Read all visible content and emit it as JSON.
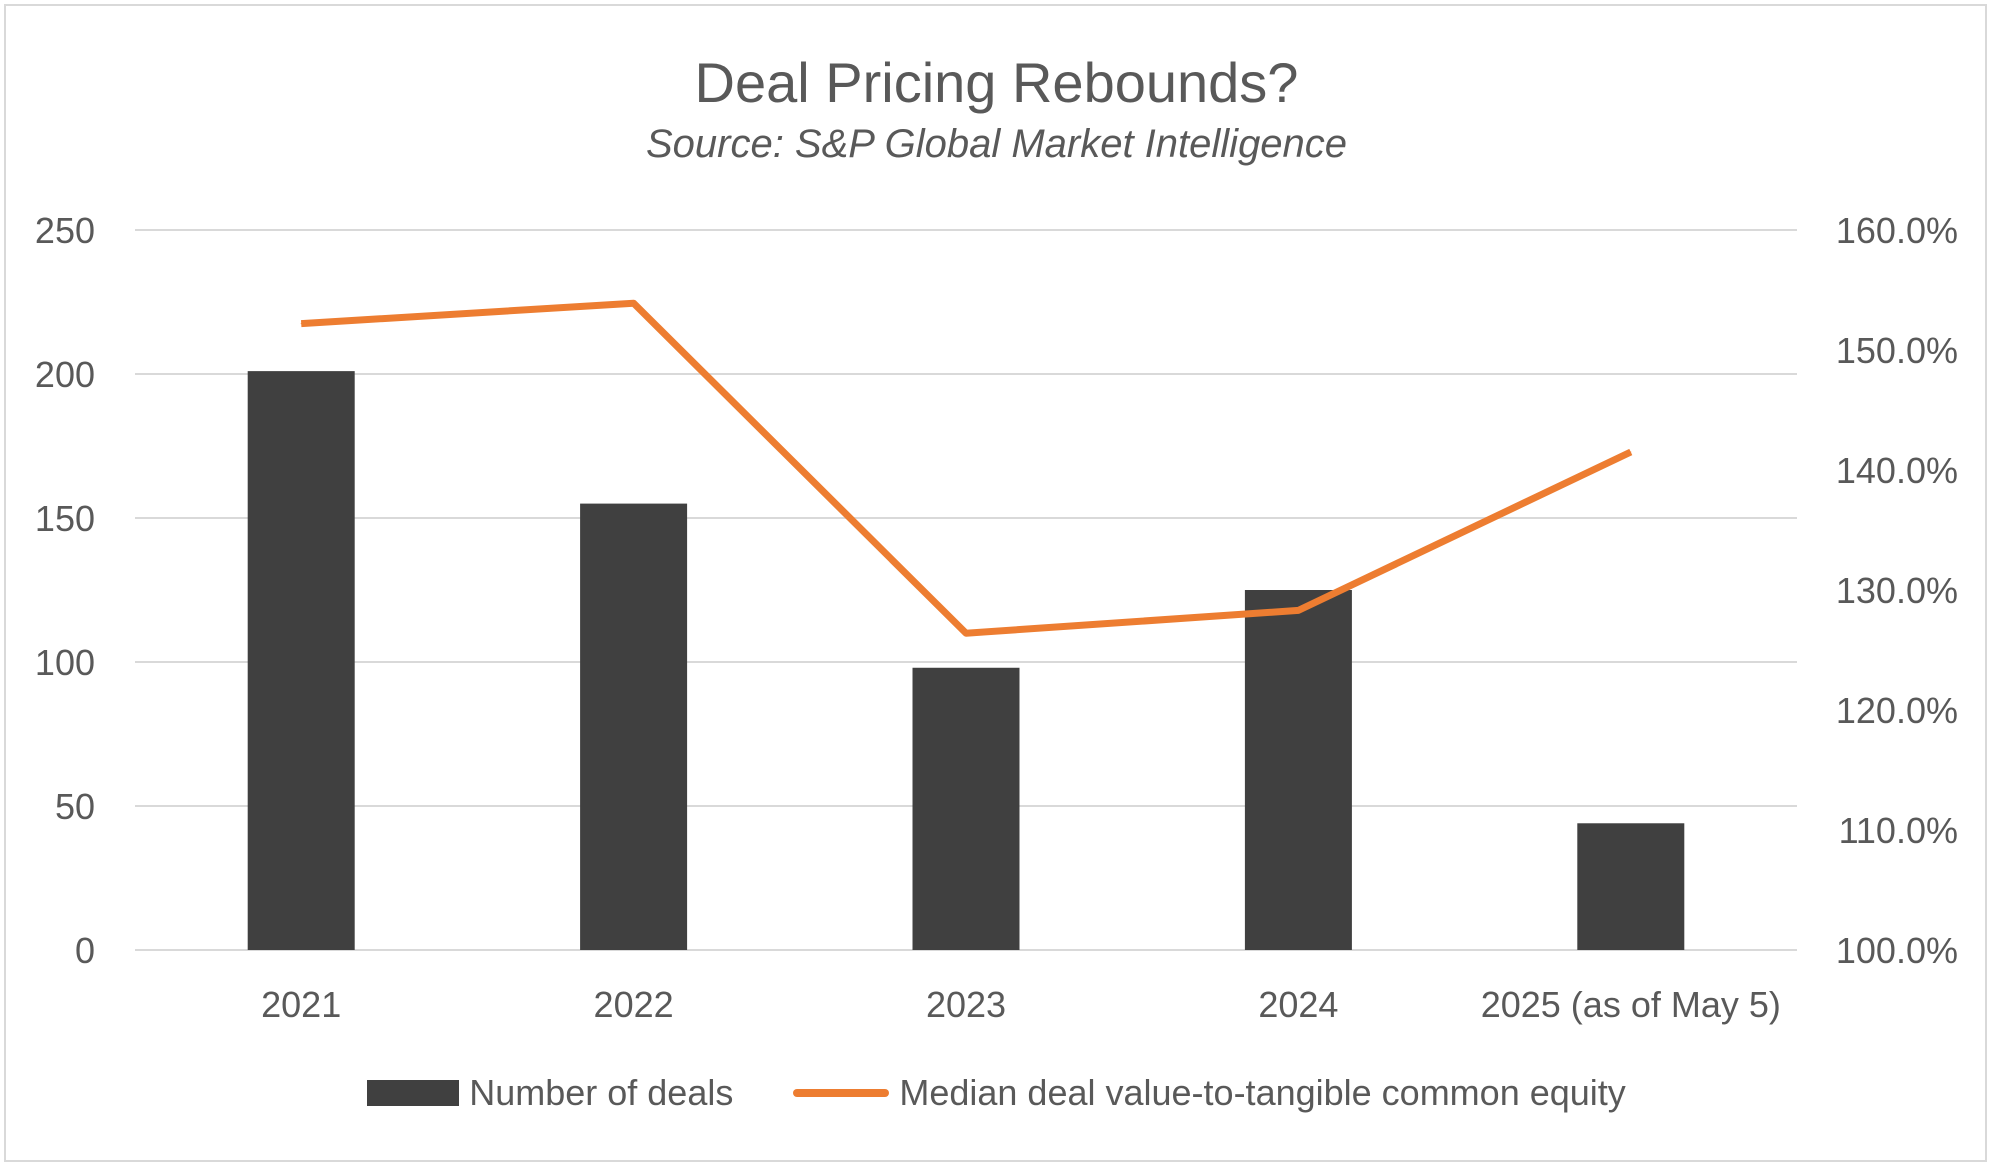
{
  "colors": {
    "bar": "#404040",
    "line": "#ed7d31",
    "grid": "#d9d9d9",
    "text": "#595959"
  },
  "chart_data": {
    "type": "bar",
    "title": "Deal Pricing Rebounds?",
    "subtitle": "Source: S&P Global Market Intelligence",
    "categories": [
      "2021",
      "2022",
      "2023",
      "2024",
      "2025 (as of May 5)"
    ],
    "series": [
      {
        "name": "Number of deals",
        "type": "bar",
        "axis": "left",
        "values": [
          201,
          155,
          98,
          125,
          44
        ]
      },
      {
        "name": "Median deal value-to-tangible common equity",
        "type": "line",
        "axis": "right",
        "values": [
          152.2,
          153.9,
          126.4,
          128.3,
          141.5
        ]
      }
    ],
    "y_left": {
      "ylim": [
        0,
        250
      ],
      "ticks": [
        "0",
        "50",
        "100",
        "150",
        "200",
        "250"
      ]
    },
    "y_right": {
      "ylim": [
        100,
        160
      ],
      "ticks": [
        "100.0%",
        "110.0%",
        "120.0%",
        "130.0%",
        "140.0%",
        "150.0%",
        "160.0%"
      ]
    },
    "grid": true,
    "legend_position": "bottom"
  }
}
